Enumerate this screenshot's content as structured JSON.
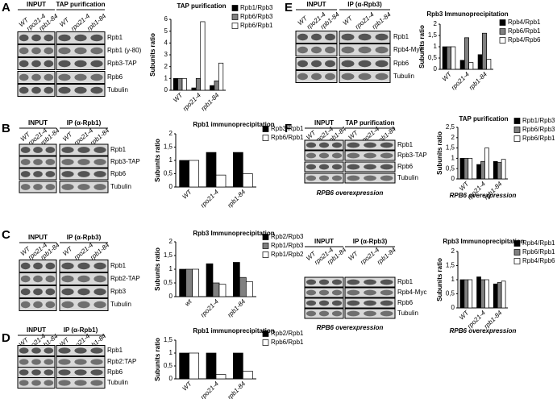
{
  "blots": [
    {
      "letter": "A",
      "groups": [
        {
          "header": "INPUT",
          "lanes": [
            "WT",
            "rpo21-4",
            "rpb1-84"
          ]
        },
        {
          "header": "TAP purification",
          "lanes": [
            "WT",
            "rpo21-4",
            "rpb1-84"
          ]
        }
      ],
      "rows": [
        "Rpb1",
        "Rpb1 (y-80)",
        "Rpb3-TAP",
        "Rpb6",
        "Tubulin"
      ]
    },
    {
      "letter": "B",
      "groups": [
        {
          "header": "INPUT",
          "lanes": [
            "WT",
            "rpo21-4",
            "rpb1-84"
          ]
        },
        {
          "header": "IP (α-Rpb1)",
          "lanes": [
            "WT",
            "rpo21-4",
            "rpb1-84"
          ]
        }
      ],
      "rows": [
        "Rpb1",
        "Rpb3-TAP",
        "Rpb6",
        "Tubulin"
      ]
    },
    {
      "letter": "C",
      "groups": [
        {
          "header": "INPUT",
          "lanes": [
            "WT",
            "rpo21-4",
            "rpb1-84"
          ]
        },
        {
          "header": "IP (α-Rpb3)",
          "lanes": [
            "WT",
            "rpo21-4",
            "rpb1-84"
          ]
        }
      ],
      "rows": [
        "Rpb1",
        "Rpb2-TAP",
        "Rpb3",
        "Tubulin"
      ]
    },
    {
      "letter": "D",
      "groups": [
        {
          "header": "INPUT",
          "lanes": [
            "WT",
            "rpo21-4",
            "rpb1-84"
          ]
        },
        {
          "header": "IP (α-Rpb1)",
          "lanes": [
            "WT",
            "rpo21-4",
            "rpb1-84"
          ]
        }
      ],
      "rows": [
        "Rpb1",
        "Rpb2:TAP",
        "Rpb6",
        "Tubulin"
      ]
    },
    {
      "letter": "E",
      "groups": [
        {
          "header": "INPUT",
          "lanes": [
            "WT",
            "rpo21-4",
            "rpb1-84"
          ]
        },
        {
          "header": "IP (α-Rpb3)",
          "lanes": [
            "WT",
            "rpo21-4",
            "rpb1-84"
          ]
        }
      ],
      "rows": [
        "Rpb1",
        "Rpb4-Myc",
        "Rpb6",
        "Tubulin"
      ]
    },
    {
      "letter": "F",
      "groups": [
        {
          "header": "INPUT",
          "lanes": [
            "WT",
            "rpo21-4",
            "rpb1-84"
          ]
        },
        {
          "header": "TAP purification",
          "lanes": [
            "WT",
            "rpo21-4",
            "rpb1-84"
          ]
        }
      ],
      "rows": [
        "Rpb1",
        "Rpb3-TAP",
        "Rpb6",
        "Tubulin"
      ],
      "footer": "RPB6 overexpression"
    },
    {
      "groups": [
        {
          "header": "INPUT",
          "lanes": [
            "WT",
            "rpo21-4",
            "rpb1-84"
          ]
        },
        {
          "header": "IP (α-Rpb3)",
          "lanes": [
            "WT",
            "rpo21-4",
            "rpb1-84"
          ]
        }
      ],
      "rows": [
        "Rpb1",
        "Rpb4-Myc",
        "Rpb6",
        "Tubulin"
      ],
      "footer": "RPB6 overexpression"
    }
  ],
  "chart_data": [
    {
      "type": "bar",
      "title": "TAP purification",
      "y_label": "Subunits ratio",
      "categories": [
        "WT",
        "rpo21-4",
        "rpb1-84"
      ],
      "series": [
        {
          "name": "Rpb1/Rpb3",
          "color": "#000000",
          "values": [
            1,
            0.2,
            0.4
          ]
        },
        {
          "name": "Rpb6/Rpb3",
          "color": "#808080",
          "values": [
            1,
            1,
            0.8
          ]
        },
        {
          "name": "Rpb6/Rpb1",
          "color": "#ffffff",
          "values": [
            1,
            5.8,
            2.3
          ]
        }
      ],
      "ylim": [
        0,
        6
      ],
      "yticks": [
        0,
        1,
        2,
        3,
        4,
        5,
        6
      ]
    },
    {
      "type": "bar",
      "title": "Rpb1 immunoprecipitation",
      "y_label": "Subunits ratio",
      "categories": [
        "WT",
        "rpo21-4",
        "rpb1-84"
      ],
      "series": [
        {
          "name": "Rpb3/Rpb1",
          "color": "#000000",
          "values": [
            1,
            1.3,
            1.3
          ]
        },
        {
          "name": "Rpb6/Rpb1",
          "color": "#ffffff",
          "values": [
            1,
            0.45,
            0.5
          ]
        }
      ],
      "ylim": [
        0,
        2
      ],
      "yticks": [
        0,
        {
          "value": 0.5,
          "label": "0,5"
        },
        1,
        {
          "value": 1.5,
          "label": "1,5"
        },
        2
      ]
    },
    {
      "type": "bar",
      "title": "Rpb3 Immunoprecipitation",
      "y_label": "Subunits ratio",
      "categories": [
        "wt",
        "rpo21-4",
        "rpb1-84"
      ],
      "series": [
        {
          "name": "Rpb2/Rpb3",
          "color": "#000000",
          "values": [
            1,
            1.2,
            1.25
          ]
        },
        {
          "name": "Rpb1/Rpb3",
          "color": "#808080",
          "values": [
            1,
            0.5,
            0.7
          ]
        },
        {
          "name": "Rpb1/Rpb2",
          "color": "#ffffff",
          "values": [
            1,
            0.45,
            0.55
          ]
        }
      ],
      "ylim": [
        0,
        2
      ],
      "yticks": [
        0,
        {
          "value": 0.5,
          "label": "0,5"
        },
        1,
        {
          "value": 1.5,
          "label": "1,5"
        },
        2
      ]
    },
    {
      "type": "bar",
      "title": "Rpb1 immunoprecipitation",
      "y_label": "Subunits ratio",
      "categories": [
        "WT",
        "rpo21-4",
        "rpb1-84"
      ],
      "series": [
        {
          "name": "Rpb2/Rpb1",
          "color": "#000000",
          "values": [
            1,
            1,
            1
          ]
        },
        {
          "name": "Rpb6/Rpb1",
          "color": "#ffffff",
          "values": [
            1,
            0.17,
            0.3
          ]
        }
      ],
      "ylim": [
        0,
        1.5
      ],
      "yticks": [
        0,
        {
          "value": 0.5,
          "label": "0,5"
        },
        1,
        {
          "value": 1.5,
          "label": "1,5"
        }
      ]
    },
    {
      "type": "bar",
      "title": "Rpb3 Immunoprecipitation",
      "y_label": "Subunits ratio",
      "categories": [
        "WT",
        "rpo21-4",
        "rpb1-84"
      ],
      "series": [
        {
          "name": "Rpb4/Rpb1",
          "color": "#000000",
          "values": [
            1,
            0.4,
            0.65
          ]
        },
        {
          "name": "Rpb6/Rpb1",
          "color": "#808080",
          "values": [
            1,
            1.4,
            1.6
          ]
        },
        {
          "name": "Rpb4/Rpb6",
          "color": "#ffffff",
          "values": [
            1,
            0.3,
            0.45
          ]
        }
      ],
      "ylim": [
        0,
        2
      ],
      "yticks": [
        0,
        {
          "value": 0.5,
          "label": "0,5"
        },
        1,
        {
          "value": 1.5,
          "label": "1,5"
        },
        2
      ]
    },
    {
      "type": "bar",
      "title": "TAP purification",
      "subtitle": "RPB6 overexpression",
      "y_label": "Subunits ratio",
      "categories": [
        "WT",
        "rpo21-4",
        "rpb1-84"
      ],
      "series": [
        {
          "name": "Rpb1/Rpb3",
          "color": "#000000",
          "values": [
            1,
            0.7,
            0.85
          ]
        },
        {
          "name": "Rpb6/Rpb3",
          "color": "#808080",
          "values": [
            1,
            0.85,
            0.8
          ]
        },
        {
          "name": "Rpb6/Rpb1",
          "color": "#ffffff",
          "values": [
            1,
            1.5,
            0.95
          ]
        }
      ],
      "ylim": [
        0,
        2.5
      ],
      "yticks": [
        0,
        {
          "value": 0.5,
          "label": "0,5"
        },
        1,
        {
          "value": 1.5,
          "label": "1,5"
        },
        2,
        {
          "value": 2.5,
          "label": "2,5"
        }
      ]
    },
    {
      "type": "bar",
      "title": "Rpb3 Immunoprecipitation",
      "subtitle": "RPB6 overexpression",
      "y_label": "Subunits ratio",
      "categories": [
        "WT",
        "rpo21-4",
        "rpb1-84"
      ],
      "series": [
        {
          "name": "Rpb4/Rpb1",
          "color": "#000000",
          "values": [
            1,
            1.1,
            0.85
          ]
        },
        {
          "name": "Rpb6/Rpb1",
          "color": "#808080",
          "values": [
            1,
            1,
            0.9
          ]
        },
        {
          "name": "Rpb4/Rpb6",
          "color": "#ffffff",
          "values": [
            1,
            1,
            0.95
          ]
        }
      ],
      "ylim": [
        0,
        2
      ],
      "yticks": [
        0,
        {
          "value": 0.5,
          "label": "0,5"
        },
        1,
        {
          "value": 1.5,
          "label": "1,5"
        },
        2
      ]
    }
  ]
}
